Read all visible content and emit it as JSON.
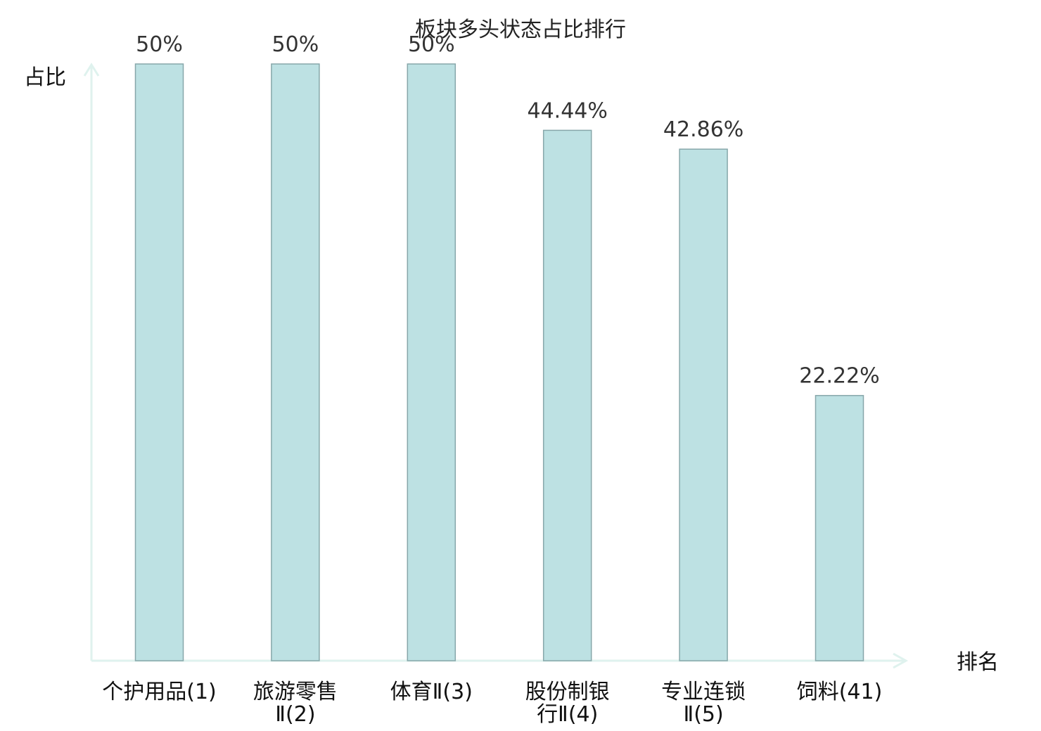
{
  "chart_data": {
    "type": "bar",
    "title": "板块多头状态占比排行",
    "xlabel": "排名",
    "ylabel": "占比",
    "categories": [
      [
        "个护用品(1)"
      ],
      [
        "旅游零售",
        "Ⅱ(2)"
      ],
      [
        "体育Ⅱ(3)"
      ],
      [
        "股份制银",
        "行Ⅱ(4)"
      ],
      [
        "专业连锁",
        "Ⅱ(5)"
      ],
      [
        "饲料(41)"
      ]
    ],
    "values": [
      50,
      50,
      50,
      44.44,
      42.86,
      22.22
    ],
    "value_labels": [
      "50%",
      "50%",
      "50%",
      "44.44%",
      "42.86%",
      "22.22%"
    ],
    "highlight_index": 5,
    "ylim": [
      0,
      50
    ],
    "grid": false,
    "colors": {
      "bar_fill": "#bde1e3",
      "bar_stroke": "#87a7aa",
      "axis": "#dff2ee",
      "highlight_text": "#e02020",
      "text": "#111111"
    }
  }
}
